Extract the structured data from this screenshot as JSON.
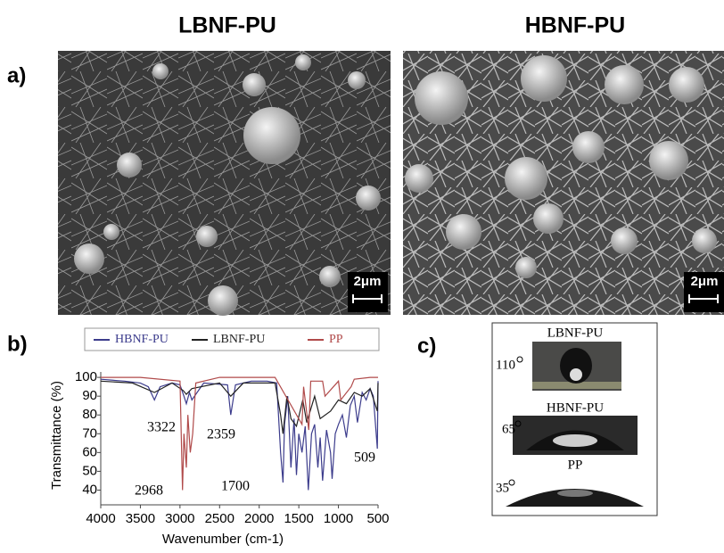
{
  "panels": {
    "a": {
      "label": "a)",
      "images": [
        {
          "title": "LBNF-PU",
          "scale_bar": "2μm"
        },
        {
          "title": "HBNF-PU",
          "scale_bar": "2μm"
        }
      ]
    },
    "b": {
      "label": "b)",
      "chart_data": {
        "type": "line",
        "x_label": "Wavenumber (cm-1)",
        "y_label": "Transmittance (%)",
        "xlim": [
          4000,
          500
        ],
        "xticks": [
          4000,
          3500,
          3000,
          2500,
          2000,
          1500,
          1000,
          500
        ],
        "ylim": [
          35,
          101
        ],
        "yticks": [
          40,
          50,
          60,
          70,
          80,
          90,
          100
        ],
        "annotations": [
          "3322",
          "2359",
          "2968",
          "1700",
          "509"
        ],
        "series": [
          {
            "name": "HBNF-PU",
            "color": "#3c3c8c",
            "x": [
              4000,
              3700,
              3500,
              3400,
              3322,
              3250,
              3100,
              3000,
              2950,
              2920,
              2880,
              2850,
              2700,
              2400,
              2359,
              2300,
              2100,
              1900,
              1780,
              1730,
              1700,
              1680,
              1640,
              1600,
              1560,
              1530,
              1500,
              1460,
              1420,
              1380,
              1340,
              1300,
              1260,
              1230,
              1200,
              1150,
              1100,
              1080,
              1040,
              1000,
              950,
              900,
              850,
              800,
              760,
              700,
              650,
              600,
              560,
              509,
              500
            ],
            "values": [
              99,
              98,
              97,
              95,
              88,
              95,
              97,
              96,
              90,
              86,
              92,
              88,
              97,
              96,
              80,
              96,
              98,
              98,
              97,
              60,
              44,
              75,
              90,
              52,
              78,
              48,
              70,
              60,
              74,
              40,
              70,
              75,
              52,
              68,
              45,
              72,
              60,
              46,
              70,
              75,
              80,
              68,
              85,
              90,
              76,
              92,
              88,
              94,
              90,
              62,
              98
            ]
          },
          {
            "name": "LBNF-PU",
            "color": "#222222",
            "x": [
              4000,
              3600,
              3322,
              3100,
              2960,
              2920,
              2850,
              2500,
              2359,
              2200,
              1800,
              1730,
              1700,
              1650,
              1600,
              1530,
              1450,
              1400,
              1300,
              1230,
              1100,
              1000,
              900,
              800,
              700,
              600,
              509,
              500
            ],
            "values": [
              98,
              97,
              92,
              97,
              93,
              91,
              94,
              97,
              90,
              97,
              97,
              80,
              70,
              90,
              78,
              74,
              88,
              76,
              90,
              78,
              82,
              88,
              86,
              92,
              90,
              94,
              82,
              97
            ]
          },
          {
            "name": "PP",
            "color": "#b04a4a",
            "x": [
              4000,
              3500,
              3000,
              2968,
              2950,
              2920,
              2900,
              2870,
              2840,
              2800,
              2500,
              2000,
              1800,
              1460,
              1440,
              1375,
              1350,
              1200,
              1170,
              1000,
              970,
              840,
              800,
              600,
              500
            ],
            "values": [
              100,
              100,
              98,
              40,
              70,
              52,
              80,
              60,
              70,
              97,
              100,
              100,
              100,
              75,
              95,
              72,
              98,
              98,
              90,
              98,
              88,
              95,
              99,
              100,
              100
            ]
          }
        ]
      }
    },
    "c": {
      "label": "c)",
      "samples": [
        {
          "name": "LBNF-PU",
          "angle": 110
        },
        {
          "name": "HBNF-PU",
          "angle": 65
        },
        {
          "name": "PP",
          "angle": 35
        }
      ]
    }
  }
}
